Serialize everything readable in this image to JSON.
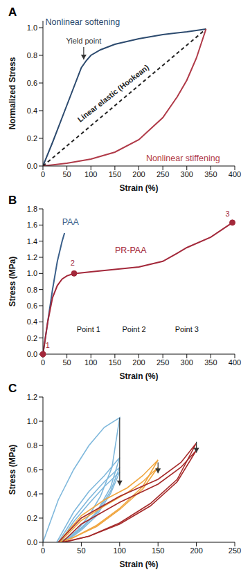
{
  "chart_data": [
    {
      "type": "line",
      "title": "A",
      "x_label": "Strain (%)",
      "y_label": "Normalized Stress",
      "xlim": [
        0,
        400
      ],
      "xticks": [
        0,
        50,
        100,
        150,
        200,
        250,
        300,
        350,
        400
      ],
      "ylim": [
        0,
        1.05
      ],
      "yticks": [
        {
          "value": 0,
          "label": "0.0"
        },
        {
          "value": 0.2,
          "label": "0.2"
        },
        {
          "value": 0.4,
          "label": "0.4"
        },
        {
          "value": 0.6,
          "label": "0.6"
        },
        {
          "value": 0.8,
          "label": "0.8"
        },
        {
          "value": 1,
          "label": "1.0"
        }
      ],
      "series": [
        {
          "name": "Nonlinear softening",
          "color": "#2c4a6e",
          "line_style": "solid",
          "label_x": 5,
          "label_y": 1.02,
          "x": [
            0,
            20,
            40,
            60,
            80,
            90,
            100,
            120,
            150,
            200,
            250,
            300,
            340
          ],
          "values": [
            0,
            0.17,
            0.35,
            0.53,
            0.71,
            0.76,
            0.8,
            0.84,
            0.88,
            0.92,
            0.95,
            0.97,
            0.99
          ]
        },
        {
          "name": "Linear elastic (Hookean)",
          "color": "#222222",
          "line_style": "dashed",
          "label_x": 150,
          "label_y": 0.51,
          "x": [
            0,
            340
          ],
          "values": [
            0,
            0.99
          ]
        },
        {
          "name": "Nonlinear stiffening",
          "color": "#b03a48",
          "line_style": "solid",
          "label_x": 215,
          "label_y": 0.035,
          "x": [
            0,
            50,
            100,
            150,
            200,
            250,
            280,
            300,
            320,
            340
          ],
          "values": [
            0,
            0.02,
            0.05,
            0.1,
            0.19,
            0.35,
            0.5,
            0.62,
            0.78,
            0.99
          ]
        }
      ],
      "annotations": [
        {
          "text": "Yield point",
          "x": 85,
          "y": 0.9,
          "color": "#333333"
        }
      ],
      "arrows": [
        {
          "x": 85,
          "from": 0.86,
          "to": 0.77
        }
      ]
    },
    {
      "type": "line",
      "title": "B",
      "x_label": "Strain (%)",
      "y_label": "Stress (MPa)",
      "xlim": [
        0,
        400
      ],
      "xticks": [
        0,
        50,
        100,
        150,
        200,
        250,
        300,
        350,
        400
      ],
      "ylim": [
        0,
        1.8
      ],
      "yticks": [
        {
          "value": 0,
          "label": "0.0"
        },
        {
          "value": 0.2,
          "label": "0.2"
        },
        {
          "value": 0.4,
          "label": "0.4"
        },
        {
          "value": 0.6,
          "label": "0.6"
        },
        {
          "value": 0.8,
          "label": "0.8"
        },
        {
          "value": 1,
          "label": "1.0"
        },
        {
          "value": 1.2,
          "label": "1.2"
        },
        {
          "value": 1.4,
          "label": "1.4"
        },
        {
          "value": 1.6,
          "label": "1.6"
        },
        {
          "value": 1.8,
          "label": "1.8"
        }
      ],
      "series": [
        {
          "name": "PAA",
          "color": "#3a5f8a",
          "line_style": "solid",
          "label_x": 40,
          "label_y": 1.6,
          "x": [
            0,
            10,
            20,
            30,
            40,
            45
          ],
          "values": [
            0,
            0.4,
            0.8,
            1.15,
            1.4,
            1.5
          ]
        },
        {
          "name": "PR-PAA",
          "color": "#a3283a",
          "line_style": "solid",
          "label_x": 150,
          "label_y": 1.25,
          "x": [
            0,
            10,
            20,
            30,
            40,
            50,
            60,
            70,
            100,
            150,
            200,
            250,
            280,
            300,
            350,
            395
          ],
          "values": [
            0,
            0.4,
            0.7,
            0.85,
            0.93,
            0.97,
            0.99,
            1.0,
            1.02,
            1.05,
            1.08,
            1.15,
            1.25,
            1.32,
            1.45,
            1.63
          ]
        }
      ],
      "markers": [
        {
          "x": 0,
          "y": 0,
          "color": "#a3283a"
        },
        {
          "x": 65,
          "y": 1.0,
          "color": "#a3283a"
        },
        {
          "x": 395,
          "y": 1.63,
          "color": "#a3283a"
        }
      ],
      "annotations": [
        {
          "text": "1",
          "x": 10,
          "y": 0.1,
          "color": "#a3283a"
        },
        {
          "text": "2",
          "x": 62,
          "y": 1.12,
          "color": "#a3283a"
        },
        {
          "text": "3",
          "x": 385,
          "y": 1.73,
          "color": "#a3283a"
        },
        {
          "text": "Point 1",
          "x": 95,
          "y": 0.3,
          "color": "#111111"
        },
        {
          "text": "Point 2",
          "x": 190,
          "y": 0.3,
          "color": "#111111"
        },
        {
          "text": "Point 3",
          "x": 300,
          "y": 0.3,
          "color": "#111111"
        }
      ]
    },
    {
      "type": "line",
      "title": "C",
      "x_label": "Strain (%)",
      "y_label": "Stress (MPa)",
      "xlim": [
        0,
        250
      ],
      "xticks": [
        0,
        50,
        100,
        150,
        200,
        250
      ],
      "ylim": [
        0,
        1.2
      ],
      "yticks": [
        {
          "value": 0,
          "label": "0.0"
        },
        {
          "value": 0.2,
          "label": "0.2"
        },
        {
          "value": 0.4,
          "label": "0.4"
        },
        {
          "value": 0.6,
          "label": "0.6"
        },
        {
          "value": 0.8,
          "label": "0.8"
        },
        {
          "value": 1,
          "label": "1.0"
        },
        {
          "value": 1.2,
          "label": "1.2"
        }
      ],
      "series": [
        {
          "color": "#7fb8dc",
          "line_style": "solid",
          "x": [
            0,
            20,
            40,
            60,
            80,
            100,
            90,
            75,
            60,
            45,
            30,
            18
          ],
          "values": [
            0,
            0.35,
            0.6,
            0.8,
            0.95,
            1.03,
            0.62,
            0.38,
            0.22,
            0.1,
            0.03,
            0
          ]
        },
        {
          "color": "#7fb8dc",
          "line_style": "solid",
          "x": [
            18,
            40,
            60,
            80,
            100,
            88,
            70,
            50,
            35,
            20
          ],
          "values": [
            0,
            0.25,
            0.42,
            0.55,
            0.7,
            0.45,
            0.25,
            0.12,
            0.04,
            0
          ]
        },
        {
          "color": "#7fb8dc",
          "line_style": "solid",
          "x": [
            20,
            40,
            60,
            80,
            100,
            88,
            70,
            50,
            35,
            22
          ],
          "values": [
            0,
            0.2,
            0.36,
            0.5,
            0.62,
            0.42,
            0.24,
            0.11,
            0.04,
            0
          ]
        },
        {
          "color": "#7fb8dc",
          "line_style": "solid",
          "x": [
            22,
            40,
            60,
            80,
            100,
            88,
            70,
            50,
            35,
            24
          ],
          "values": [
            0,
            0.17,
            0.32,
            0.46,
            0.58,
            0.4,
            0.22,
            0.1,
            0.03,
            0
          ]
        },
        {
          "color": "#f0a640",
          "line_style": "solid",
          "x": [
            20,
            50,
            80,
            110,
            130,
            150,
            130,
            100,
            70,
            40,
            22
          ],
          "values": [
            0,
            0.22,
            0.35,
            0.45,
            0.55,
            0.68,
            0.46,
            0.28,
            0.14,
            0.04,
            0
          ]
        },
        {
          "color": "#f0a640",
          "line_style": "solid",
          "x": [
            22,
            50,
            80,
            110,
            130,
            150,
            130,
            100,
            70,
            40,
            24
          ],
          "values": [
            0,
            0.18,
            0.3,
            0.41,
            0.5,
            0.62,
            0.44,
            0.27,
            0.13,
            0.04,
            0
          ]
        },
        {
          "color": "#a52a2a",
          "line_style": "solid",
          "x": [
            20,
            50,
            100,
            150,
            180,
            200,
            175,
            140,
            100,
            60,
            25
          ],
          "values": [
            0,
            0.2,
            0.38,
            0.52,
            0.66,
            0.82,
            0.52,
            0.32,
            0.16,
            0.05,
            0
          ]
        },
        {
          "color": "#a52a2a",
          "line_style": "solid",
          "x": [
            25,
            50,
            100,
            150,
            180,
            200,
            175,
            140,
            100,
            60,
            28
          ],
          "values": [
            0,
            0.15,
            0.33,
            0.48,
            0.62,
            0.76,
            0.5,
            0.3,
            0.15,
            0.05,
            0
          ]
        }
      ],
      "arrows": [
        {
          "x": 100,
          "from": 1.03,
          "to": 0.47
        },
        {
          "x": 150,
          "from": 0.66,
          "to": 0.57
        },
        {
          "x": 200,
          "from": 0.83,
          "to": 0.74
        }
      ]
    }
  ]
}
